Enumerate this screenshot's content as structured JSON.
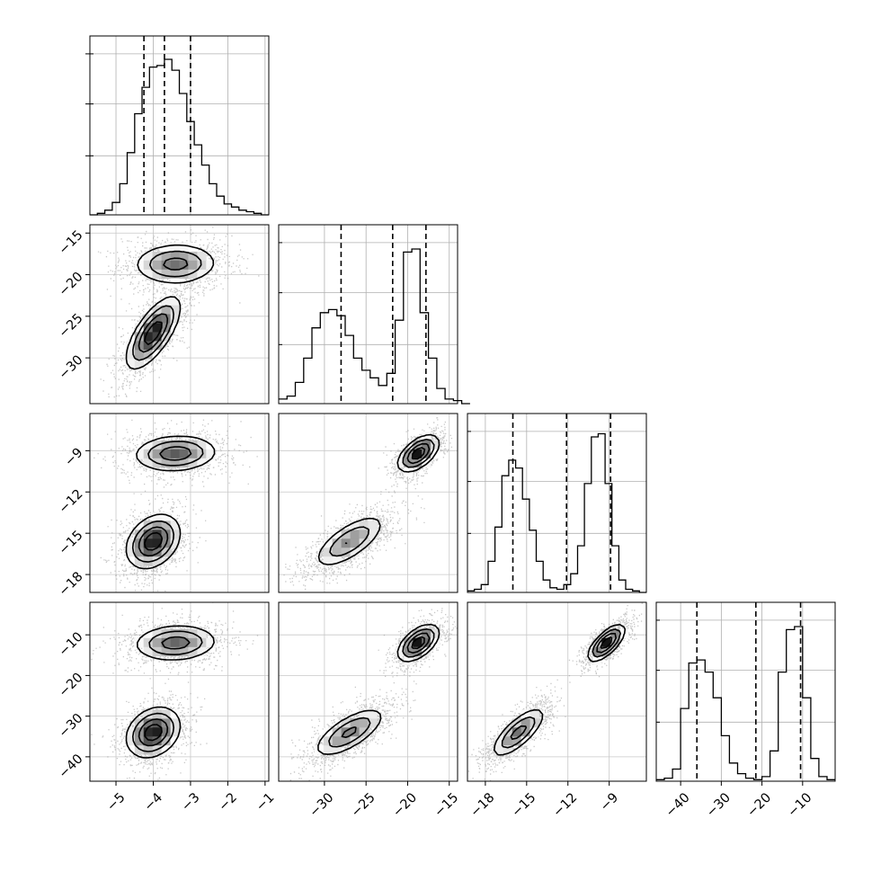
{
  "chart_data": {
    "type": "corner",
    "grid": true,
    "title": "",
    "parameters": [
      {
        "range": [
          -5.7,
          -0.9
        ],
        "ticks": [
          -5,
          -4,
          -3,
          -2,
          -1
        ],
        "tick_labels": [
          "−5",
          "−4",
          "−3",
          "−2",
          "−1"
        ],
        "quantiles": [
          -4.25,
          -3.7,
          -3.0
        ],
        "modes": [
          {
            "mu": -3.7,
            "s": 0.45,
            "w": 1.0
          }
        ]
      },
      {
        "range": [
          -35.5,
          -14.0
        ],
        "ticks": [
          -30,
          -25,
          -20,
          -15
        ],
        "tick_labels": [
          "−30",
          "−25",
          "−20",
          "−15"
        ],
        "quantiles": [
          -28.0,
          -21.8,
          -17.8
        ],
        "modes": [
          {
            "mu": -27.0,
            "s": 2.1,
            "w": 0.55
          },
          {
            "mu": -18.7,
            "s": 1.2,
            "w": 0.45
          }
        ]
      },
      {
        "range": [
          -19.3,
          -6.3
        ],
        "ticks": [
          -18,
          -15,
          -12,
          -9
        ],
        "tick_labels": [
          "−18",
          "−15",
          "−12",
          "−9"
        ],
        "quantiles": [
          -16.0,
          -12.1,
          -8.9
        ],
        "modes": [
          {
            "mu": -15.6,
            "s": 0.95,
            "w": 0.5
          },
          {
            "mu": -9.2,
            "s": 0.65,
            "w": 0.5
          }
        ]
      },
      {
        "range": [
          -46.0,
          -2.0
        ],
        "ticks": [
          -40,
          -30,
          -20,
          -10
        ],
        "tick_labels": [
          "−40",
          "−30",
          "−20",
          "−10"
        ],
        "quantiles": [
          -36.0,
          -21.5,
          -10.5
        ],
        "modes": [
          {
            "mu": -34.0,
            "s": 3.0,
            "w": 0.5
          },
          {
            "mu": -12.0,
            "s": 2.2,
            "w": 0.5
          }
        ]
      }
    ],
    "histograms": [
      {
        "param": 0,
        "bins": [
          -5.7,
          -5.5,
          -5.3,
          -5.1,
          -4.9,
          -4.7,
          -4.5,
          -4.3,
          -4.1,
          -3.9,
          -3.7,
          -3.5,
          -3.3,
          -3.1,
          -2.9,
          -2.7,
          -2.5,
          -2.3,
          -2.1,
          -1.9,
          -1.7,
          -1.5,
          -1.3,
          -1.1,
          -0.9
        ],
        "counts": [
          0,
          1,
          3,
          8,
          20,
          40,
          65,
          82,
          95,
          96,
          100,
          93,
          78,
          60,
          45,
          32,
          20,
          12,
          7,
          5,
          3,
          2,
          1,
          0
        ],
        "ymax": 115
      },
      {
        "param": 1,
        "bins": [
          -35.5,
          -34.5,
          -33.5,
          -32.5,
          -31.5,
          -30.5,
          -29.5,
          -28.5,
          -27.5,
          -26.5,
          -25.5,
          -24.5,
          -23.5,
          -22.5,
          -21.5,
          -20.5,
          -19.5,
          -18.5,
          -17.5,
          -16.5,
          -15.5,
          -14.5,
          -13.5,
          -12.5
        ],
        "counts": [
          3,
          5,
          14,
          30,
          50,
          60,
          62,
          58,
          45,
          30,
          22,
          17,
          12,
          20,
          55,
          100,
          102,
          60,
          30,
          10,
          3,
          2,
          0
        ],
        "ymax": 118
      },
      {
        "param": 2,
        "bins": [
          -19.3,
          -18.8,
          -18.3,
          -17.8,
          -17.3,
          -16.8,
          -16.3,
          -15.8,
          -15.3,
          -14.8,
          -14.3,
          -13.8,
          -13.3,
          -12.8,
          -12.3,
          -11.8,
          -11.3,
          -10.8,
          -10.3,
          -9.8,
          -9.3,
          -8.8,
          -8.3,
          -7.8,
          -7.3,
          -6.8,
          -6.3
        ],
        "counts": [
          1,
          2,
          5,
          20,
          42,
          75,
          85,
          80,
          60,
          40,
          20,
          8,
          3,
          2,
          5,
          12,
          30,
          70,
          100,
          102,
          70,
          30,
          8,
          2,
          1,
          0
        ],
        "ymax": 115
      },
      {
        "param": 3,
        "bins": [
          -46,
          -44,
          -42,
          -40,
          -38,
          -36,
          -34,
          -32,
          -30,
          -28,
          -26,
          -24,
          -22,
          -20,
          -18,
          -16,
          -14,
          -12,
          -10,
          -8,
          -6,
          -4,
          -2
        ],
        "counts": [
          1,
          2,
          8,
          48,
          78,
          80,
          72,
          55,
          30,
          12,
          5,
          2,
          1,
          3,
          20,
          72,
          100,
          102,
          55,
          15,
          3,
          1
        ],
        "ymax": 118
      }
    ],
    "scatter_pairs": [
      {
        "x_param": 0,
        "y_param": 1
      },
      {
        "x_param": 0,
        "y_param": 2
      },
      {
        "x_param": 1,
        "y_param": 2
      },
      {
        "x_param": 0,
        "y_param": 3
      },
      {
        "x_param": 1,
        "y_param": 3
      },
      {
        "x_param": 2,
        "y_param": 3
      }
    ],
    "contour_levels": [
      0.12,
      0.3,
      0.55,
      0.8
    ]
  }
}
